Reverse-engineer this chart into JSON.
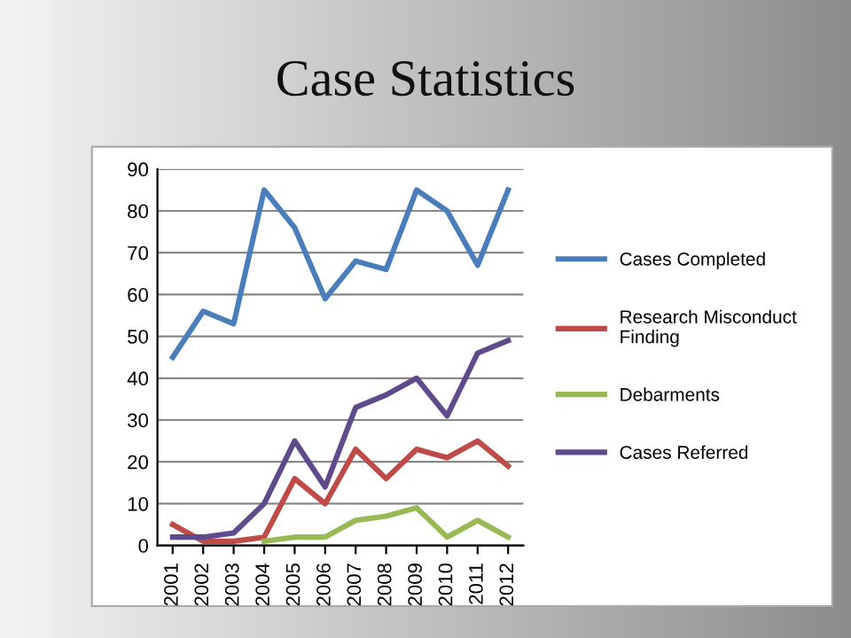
{
  "chart_data": {
    "type": "line",
    "title": "Case Statistics",
    "categories": [
      "2001",
      "2002",
      "2003",
      "2004",
      "2005",
      "2006",
      "2007",
      "2008",
      "2009",
      "2010",
      "2011",
      "2012"
    ],
    "series": [
      {
        "name": "Cases Completed",
        "color": "#4a7ebb",
        "values": [
          45,
          56,
          53,
          85,
          76,
          59,
          68,
          66,
          85,
          80,
          67,
          85
        ]
      },
      {
        "name": "Research Misconduct\nFinding",
        "color": "#be4b48",
        "values": [
          5,
          1,
          1,
          2,
          16,
          10,
          23,
          16,
          23,
          21,
          25,
          19
        ]
      },
      {
        "name": "Debarments",
        "color": "#98b954",
        "values": [
          null,
          null,
          null,
          1,
          2,
          2,
          6,
          7,
          9,
          2,
          6,
          2
        ]
      },
      {
        "name": "Cases Referred",
        "color": "#5f4b8b",
        "values": [
          2,
          2,
          3,
          10,
          25,
          14,
          33,
          36,
          40,
          31,
          46,
          49
        ]
      }
    ],
    "ylim": [
      0,
      90
    ],
    "yticks": [
      0,
      10,
      20,
      30,
      40,
      50,
      60,
      70,
      80,
      90
    ],
    "grid": "y",
    "legend": "right",
    "marker": "none"
  }
}
